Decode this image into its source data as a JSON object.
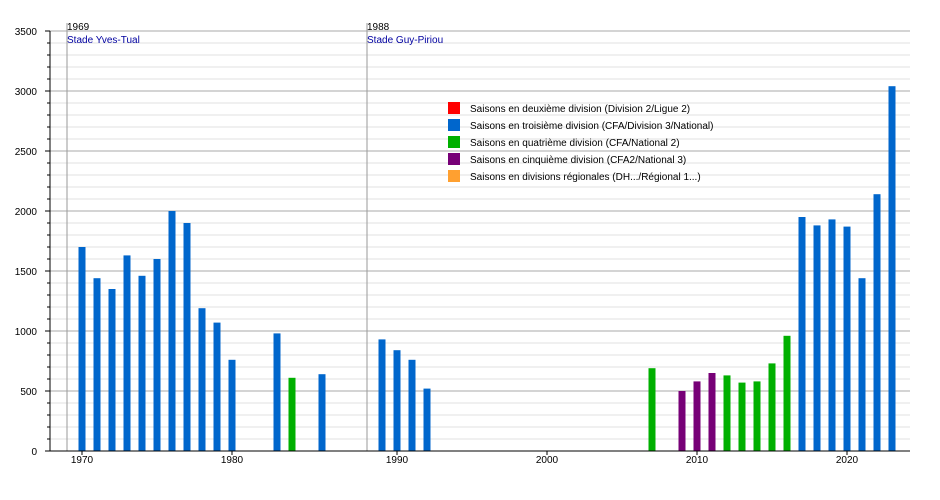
{
  "chart_data": {
    "type": "bar",
    "title": "",
    "xlabel": "",
    "ylabel": "",
    "ylim": [
      0,
      3500
    ],
    "y_ticks": [
      0,
      500,
      1000,
      1500,
      2000,
      2500,
      3000,
      3500
    ],
    "x_ticks": [
      1970,
      1980,
      1990,
      2000,
      2010,
      2020
    ],
    "grid": true,
    "legend_placement": "top-center",
    "legend": [
      {
        "key": "d2",
        "label": "Saisons en deuxième division (Division 2/Ligue 2)",
        "color": "#FF0000"
      },
      {
        "key": "d3",
        "label": "Saisons en troisième division (CFA/Division 3/National)",
        "color": "#0066CC"
      },
      {
        "key": "d4",
        "label": "Saisons en quatrième division (CFA/National 2)",
        "color": "#00B000"
      },
      {
        "key": "d5",
        "label": "Saisons en cinquième division (CFA2/National 3)",
        "color": "#770077"
      },
      {
        "key": "reg",
        "label": "Saisons en divisions régionales (DH.../Régional 1...)",
        "color": "#FFA030"
      }
    ],
    "markers": [
      {
        "year": 1969,
        "year_label": "1969",
        "label": "Stade Yves-Tual"
      },
      {
        "year": 1988,
        "year_label": "1988",
        "label": "Stade Guy-Piriou"
      }
    ],
    "bars": [
      {
        "year": 1970,
        "value": 1700,
        "division": "d3"
      },
      {
        "year": 1971,
        "value": 1440,
        "division": "d3"
      },
      {
        "year": 1972,
        "value": 1350,
        "division": "d3"
      },
      {
        "year": 1973,
        "value": 1630,
        "division": "d3"
      },
      {
        "year": 1974,
        "value": 1460,
        "division": "d3"
      },
      {
        "year": 1975,
        "value": 1600,
        "division": "d3"
      },
      {
        "year": 1976,
        "value": 2000,
        "division": "d3"
      },
      {
        "year": 1977,
        "value": 1900,
        "division": "d3"
      },
      {
        "year": 1978,
        "value": 1190,
        "division": "d3"
      },
      {
        "year": 1979,
        "value": 1070,
        "division": "d3"
      },
      {
        "year": 1980,
        "value": 760,
        "division": "d3"
      },
      {
        "year": 1983,
        "value": 980,
        "division": "d3"
      },
      {
        "year": 1984,
        "value": 610,
        "division": "d4"
      },
      {
        "year": 1986,
        "value": 640,
        "division": "d3"
      },
      {
        "year": 1989,
        "value": 930,
        "division": "d3"
      },
      {
        "year": 1990,
        "value": 840,
        "division": "d3"
      },
      {
        "year": 1991,
        "value": 760,
        "division": "d3"
      },
      {
        "year": 1992,
        "value": 520,
        "division": "d3"
      },
      {
        "year": 2007,
        "value": 690,
        "division": "d4"
      },
      {
        "year": 2009,
        "value": 500,
        "division": "d5"
      },
      {
        "year": 2010,
        "value": 580,
        "division": "d5"
      },
      {
        "year": 2011,
        "value": 650,
        "division": "d5"
      },
      {
        "year": 2012,
        "value": 630,
        "division": "d4"
      },
      {
        "year": 2013,
        "value": 570,
        "division": "d4"
      },
      {
        "year": 2014,
        "value": 580,
        "division": "d4"
      },
      {
        "year": 2015,
        "value": 730,
        "division": "d4"
      },
      {
        "year": 2016,
        "value": 960,
        "division": "d4"
      },
      {
        "year": 2017,
        "value": 1950,
        "division": "d3"
      },
      {
        "year": 2018,
        "value": 1880,
        "division": "d3"
      },
      {
        "year": 2019,
        "value": 1930,
        "division": "d3"
      },
      {
        "year": 2020,
        "value": 1870,
        "division": "d3"
      },
      {
        "year": 2021,
        "value": 1440,
        "division": "d3"
      },
      {
        "year": 2022,
        "value": 2140,
        "division": "d3"
      },
      {
        "year": 2023,
        "value": 3040,
        "division": "d3"
      }
    ]
  }
}
